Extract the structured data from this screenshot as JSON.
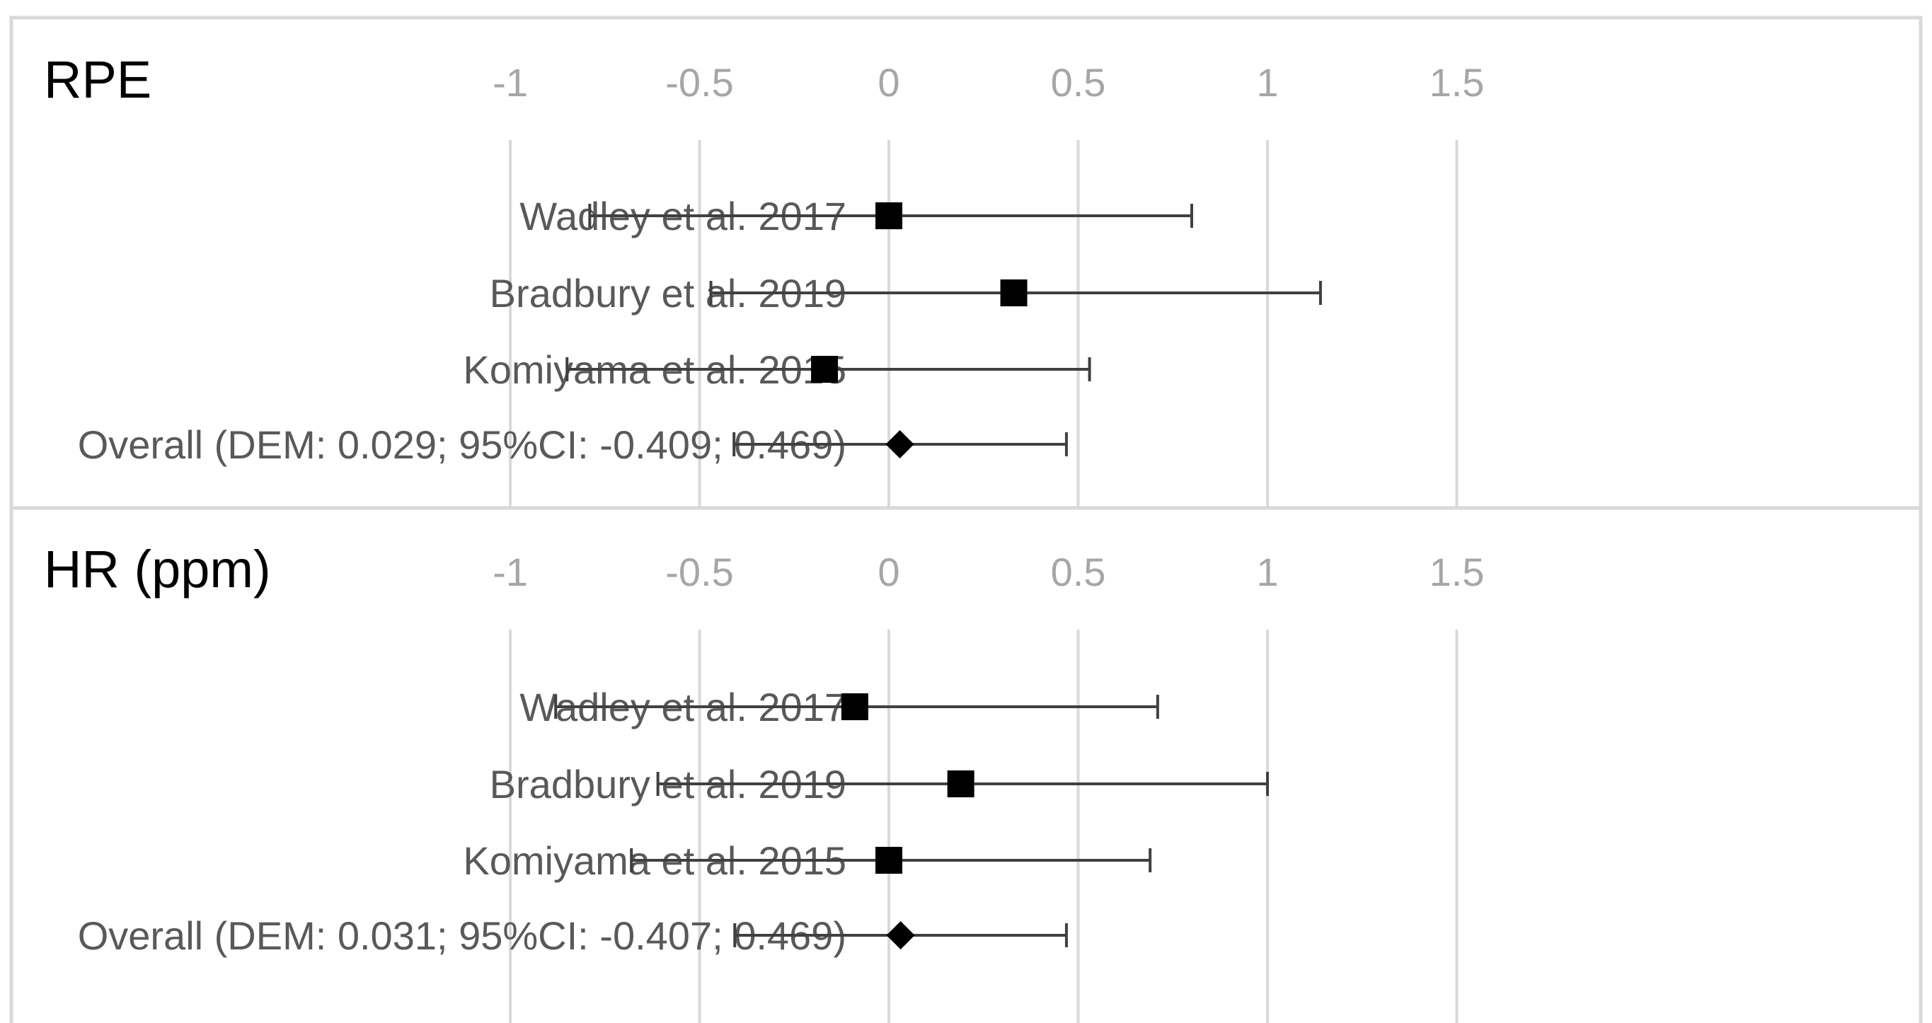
{
  "chart_data": [
    {
      "type": "forest",
      "title": "RPE",
      "xlim": [
        -1,
        1.5
      ],
      "ticks": [
        "-1",
        "-0.5",
        "0",
        "0.5",
        "1",
        "1.5"
      ],
      "tick_values": [
        -1,
        -0.5,
        0,
        0.5,
        1,
        1.5
      ],
      "studies": [
        {
          "label": "Wadley et al. 2017",
          "estimate": 0.0,
          "ci_low": -0.79,
          "ci_high": 0.8,
          "marker": "square"
        },
        {
          "label": "Bradbury et al. 2019",
          "estimate": 0.33,
          "ci_low": -0.47,
          "ci_high": 1.14,
          "marker": "square"
        },
        {
          "label": "Komiyama et al. 2015",
          "estimate": -0.17,
          "ci_low": -0.85,
          "ci_high": 0.53,
          "marker": "square"
        },
        {
          "label": "Overall (DEM: 0.029; 95%CI: -0.409; 0.469)",
          "estimate": 0.029,
          "ci_low": -0.409,
          "ci_high": 0.469,
          "marker": "diamond"
        }
      ]
    },
    {
      "type": "forest",
      "title": "HR (ppm)",
      "xlim": [
        -1,
        1.5
      ],
      "ticks": [
        "-1",
        "-0.5",
        "0",
        "0.5",
        "1",
        "1.5"
      ],
      "tick_values": [
        -1,
        -0.5,
        0,
        0.5,
        1,
        1.5
      ],
      "studies": [
        {
          "label": "Wadley et al. 2017",
          "estimate": -0.09,
          "ci_low": -0.88,
          "ci_high": 0.71,
          "marker": "square"
        },
        {
          "label": "Bradbury et al. 2019",
          "estimate": 0.19,
          "ci_low": -0.61,
          "ci_high": 1.0,
          "marker": "square"
        },
        {
          "label": "Komiyama et al. 2015",
          "estimate": 0.0,
          "ci_low": -0.68,
          "ci_high": 0.69,
          "marker": "square"
        },
        {
          "label": "Overall (DEM: 0.031; 95%CI: -0.407; 0.469)",
          "estimate": 0.031,
          "ci_low": -0.407,
          "ci_high": 0.469,
          "marker": "diamond"
        }
      ]
    }
  ],
  "colors": {
    "grid": "#d9d9d9",
    "frame": "#d9d9d9",
    "marker": "#000000",
    "whisker": "#404040",
    "tick": "#a6a6a6",
    "label": "#595959",
    "title": "#000000"
  }
}
